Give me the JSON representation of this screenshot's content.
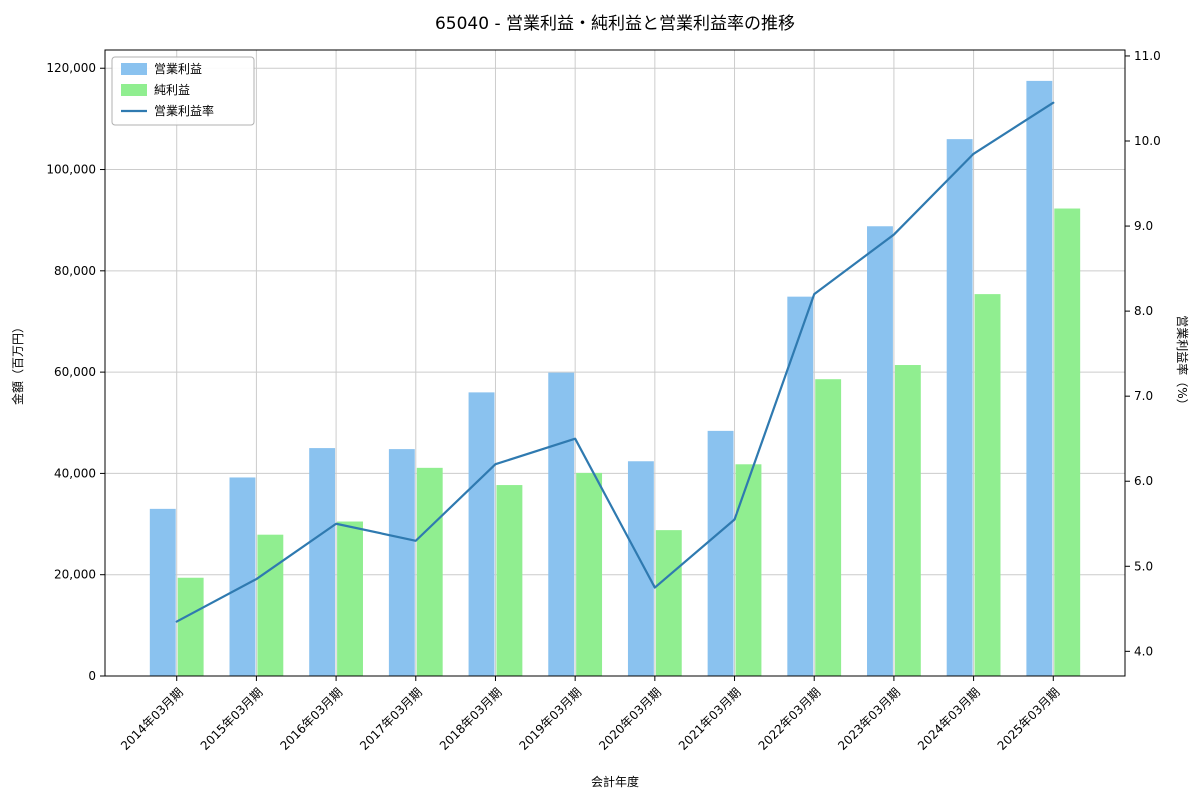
{
  "chart_data": {
    "type": "bar+line",
    "title": "65040 - 営業利益・純利益と営業利益率の推移",
    "xlabel": "会計年度",
    "ylabel_left": "金額（百万円）",
    "ylabel_right": "営業利益率（%）",
    "categories": [
      "2014年03月期",
      "2015年03月期",
      "2016年03月期",
      "2017年03月期",
      "2018年03月期",
      "2019年03月期",
      "2020年03月期",
      "2021年03月期",
      "2022年03月期",
      "2023年03月期",
      "2024年03月期",
      "2025年03月期"
    ],
    "series": [
      {
        "id": "operating-profit",
        "name": "営業利益",
        "type": "bar",
        "axis": "left",
        "color": "#8ac2ef",
        "values": [
          33000,
          39200,
          45000,
          44800,
          56000,
          59900,
          42400,
          48400,
          74900,
          88800,
          106000,
          117500
        ]
      },
      {
        "id": "net-profit",
        "name": "純利益",
        "type": "bar",
        "axis": "left",
        "color": "#90ee90",
        "values": [
          19400,
          27900,
          30500,
          41100,
          37700,
          40100,
          28800,
          41800,
          58600,
          61400,
          75400,
          92300
        ]
      },
      {
        "id": "operating-margin",
        "name": "営業利益率",
        "type": "line",
        "axis": "right",
        "color": "#2f7ab0",
        "values": [
          4.35,
          4.85,
          5.5,
          5.3,
          6.2,
          6.5,
          4.75,
          5.55,
          8.2,
          8.9,
          9.85,
          10.45
        ]
      }
    ],
    "left_axis": {
      "range": [
        0,
        123600
      ],
      "tick_values": [
        0,
        20000,
        40000,
        60000,
        80000,
        100000,
        120000
      ],
      "tick_labels": [
        "0",
        "20,000",
        "40,000",
        "60,000",
        "80,000",
        "100,000",
        "120,000"
      ]
    },
    "right_axis": {
      "range": [
        3.71,
        11.07
      ],
      "tick_values": [
        4.0,
        5.0,
        6.0,
        7.0,
        8.0,
        9.0,
        10.0,
        11.0
      ],
      "tick_labels": [
        "4.0",
        "5.0",
        "6.0",
        "7.0",
        "8.0",
        "9.0",
        "10.0",
        "11.0"
      ]
    },
    "grid": true,
    "legend_position": "upper left"
  },
  "colors": {
    "background": "#ffffff",
    "grid": "#cccccc",
    "axis": "#000000",
    "text": "#000000"
  }
}
